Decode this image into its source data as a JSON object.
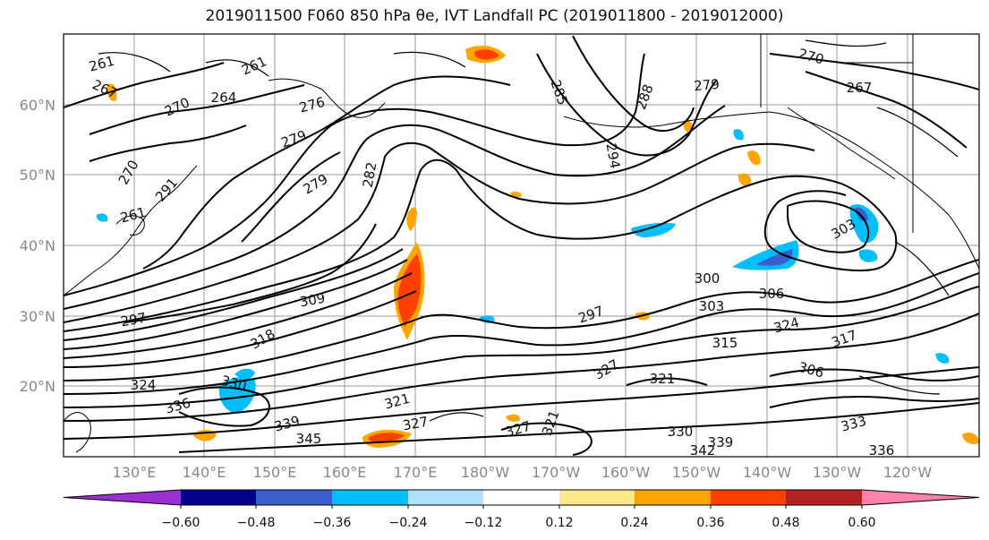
{
  "title": "2019011500 F060 850 hPa θe, IVT Landfall PC (2019011800 - 2019012000)",
  "lat_labels": [
    "60°N",
    "50°N",
    "40°N",
    "30°N",
    "20°N"
  ],
  "lon_labels": [
    "130°E",
    "140°E",
    "150°E",
    "160°E",
    "170°E",
    "180°W",
    "170°W",
    "160°W",
    "150°W",
    "140°W",
    "130°W",
    "120°W"
  ],
  "colorbar": {
    "colors": [
      "#9b30d0",
      "#00008b",
      "#3a5fcd",
      "#00bfff",
      "#b0e2ff",
      "#ffffff",
      "#ffe88a",
      "#ffa500",
      "#ff4000",
      "#b22222",
      "#ff82ab"
    ],
    "tick_labels": [
      "−0.60",
      "−0.48",
      "−0.36",
      "−0.24",
      "−0.12",
      "0.12",
      "0.24",
      "0.36",
      "0.48",
      "0.60"
    ]
  },
  "contour_labels": [
    "261",
    "267",
    "264",
    "270",
    "276",
    "279",
    "282",
    "285",
    "294",
    "288",
    "279",
    "270",
    "267",
    "297",
    "291",
    "270",
    "261",
    "261",
    "279",
    "303",
    "300",
    "306",
    "309",
    "318",
    "297",
    "303",
    "321",
    "324",
    "315",
    "317",
    "306",
    "324",
    "330",
    "336",
    "339",
    "345",
    "327",
    "321",
    "327",
    "321",
    "327",
    "330",
    "333",
    "336",
    "339",
    "342"
  ]
}
